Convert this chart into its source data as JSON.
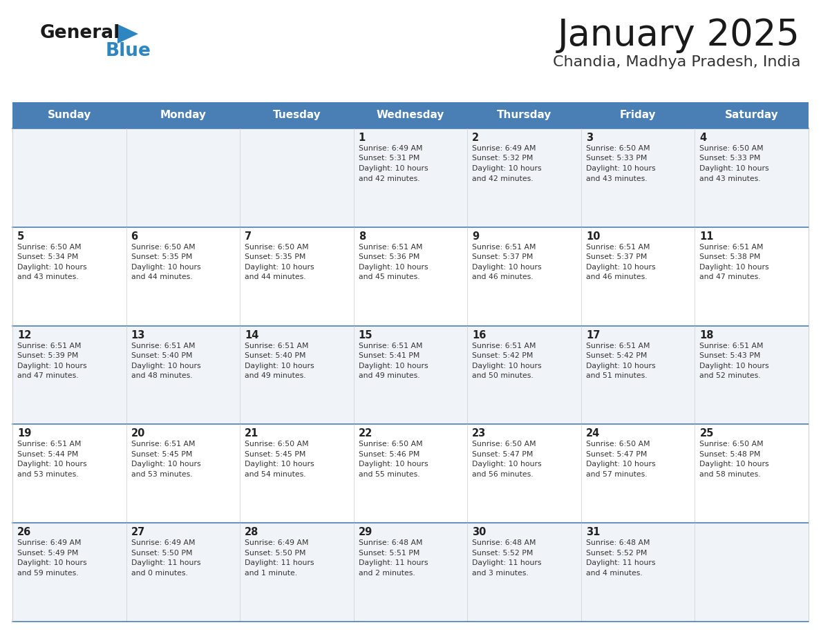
{
  "title": "January 2025",
  "subtitle": "Chandia, Madhya Pradesh, India",
  "days_of_week": [
    "Sunday",
    "Monday",
    "Tuesday",
    "Wednesday",
    "Thursday",
    "Friday",
    "Saturday"
  ],
  "header_bg": "#4A7FB5",
  "header_text_color": "#FFFFFF",
  "cell_bg_light": "#F0F4F8",
  "cell_bg_white": "#FFFFFF",
  "cell_text_color": "#333333",
  "day_num_color": "#222222",
  "grid_line_color": "#4A7FB5",
  "cell_border_color": "#CCCCCC",
  "title_color": "#1a1a1a",
  "subtitle_color": "#333333",
  "logo_general_color": "#1a1a1a",
  "logo_blue_color": "#2E86C1",
  "logo_triangle_color": "#2E86C1",
  "week_rows": [
    {
      "days": [
        {
          "day": null,
          "sunrise": null,
          "sunset": null,
          "daylight": null
        },
        {
          "day": null,
          "sunrise": null,
          "sunset": null,
          "daylight": null
        },
        {
          "day": null,
          "sunrise": null,
          "sunset": null,
          "daylight": null
        },
        {
          "day": 1,
          "sunrise": "6:49 AM",
          "sunset": "5:31 PM",
          "daylight": "10 hours\nand 42 minutes."
        },
        {
          "day": 2,
          "sunrise": "6:49 AM",
          "sunset": "5:32 PM",
          "daylight": "10 hours\nand 42 minutes."
        },
        {
          "day": 3,
          "sunrise": "6:50 AM",
          "sunset": "5:33 PM",
          "daylight": "10 hours\nand 43 minutes."
        },
        {
          "day": 4,
          "sunrise": "6:50 AM",
          "sunset": "5:33 PM",
          "daylight": "10 hours\nand 43 minutes."
        }
      ]
    },
    {
      "days": [
        {
          "day": 5,
          "sunrise": "6:50 AM",
          "sunset": "5:34 PM",
          "daylight": "10 hours\nand 43 minutes."
        },
        {
          "day": 6,
          "sunrise": "6:50 AM",
          "sunset": "5:35 PM",
          "daylight": "10 hours\nand 44 minutes."
        },
        {
          "day": 7,
          "sunrise": "6:50 AM",
          "sunset": "5:35 PM",
          "daylight": "10 hours\nand 44 minutes."
        },
        {
          "day": 8,
          "sunrise": "6:51 AM",
          "sunset": "5:36 PM",
          "daylight": "10 hours\nand 45 minutes."
        },
        {
          "day": 9,
          "sunrise": "6:51 AM",
          "sunset": "5:37 PM",
          "daylight": "10 hours\nand 46 minutes."
        },
        {
          "day": 10,
          "sunrise": "6:51 AM",
          "sunset": "5:37 PM",
          "daylight": "10 hours\nand 46 minutes."
        },
        {
          "day": 11,
          "sunrise": "6:51 AM",
          "sunset": "5:38 PM",
          "daylight": "10 hours\nand 47 minutes."
        }
      ]
    },
    {
      "days": [
        {
          "day": 12,
          "sunrise": "6:51 AM",
          "sunset": "5:39 PM",
          "daylight": "10 hours\nand 47 minutes."
        },
        {
          "day": 13,
          "sunrise": "6:51 AM",
          "sunset": "5:40 PM",
          "daylight": "10 hours\nand 48 minutes."
        },
        {
          "day": 14,
          "sunrise": "6:51 AM",
          "sunset": "5:40 PM",
          "daylight": "10 hours\nand 49 minutes."
        },
        {
          "day": 15,
          "sunrise": "6:51 AM",
          "sunset": "5:41 PM",
          "daylight": "10 hours\nand 49 minutes."
        },
        {
          "day": 16,
          "sunrise": "6:51 AM",
          "sunset": "5:42 PM",
          "daylight": "10 hours\nand 50 minutes."
        },
        {
          "day": 17,
          "sunrise": "6:51 AM",
          "sunset": "5:42 PM",
          "daylight": "10 hours\nand 51 minutes."
        },
        {
          "day": 18,
          "sunrise": "6:51 AM",
          "sunset": "5:43 PM",
          "daylight": "10 hours\nand 52 minutes."
        }
      ]
    },
    {
      "days": [
        {
          "day": 19,
          "sunrise": "6:51 AM",
          "sunset": "5:44 PM",
          "daylight": "10 hours\nand 53 minutes."
        },
        {
          "day": 20,
          "sunrise": "6:51 AM",
          "sunset": "5:45 PM",
          "daylight": "10 hours\nand 53 minutes."
        },
        {
          "day": 21,
          "sunrise": "6:50 AM",
          "sunset": "5:45 PM",
          "daylight": "10 hours\nand 54 minutes."
        },
        {
          "day": 22,
          "sunrise": "6:50 AM",
          "sunset": "5:46 PM",
          "daylight": "10 hours\nand 55 minutes."
        },
        {
          "day": 23,
          "sunrise": "6:50 AM",
          "sunset": "5:47 PM",
          "daylight": "10 hours\nand 56 minutes."
        },
        {
          "day": 24,
          "sunrise": "6:50 AM",
          "sunset": "5:47 PM",
          "daylight": "10 hours\nand 57 minutes."
        },
        {
          "day": 25,
          "sunrise": "6:50 AM",
          "sunset": "5:48 PM",
          "daylight": "10 hours\nand 58 minutes."
        }
      ]
    },
    {
      "days": [
        {
          "day": 26,
          "sunrise": "6:49 AM",
          "sunset": "5:49 PM",
          "daylight": "10 hours\nand 59 minutes."
        },
        {
          "day": 27,
          "sunrise": "6:49 AM",
          "sunset": "5:50 PM",
          "daylight": "11 hours\nand 0 minutes."
        },
        {
          "day": 28,
          "sunrise": "6:49 AM",
          "sunset": "5:50 PM",
          "daylight": "11 hours\nand 1 minute."
        },
        {
          "day": 29,
          "sunrise": "6:48 AM",
          "sunset": "5:51 PM",
          "daylight": "11 hours\nand 2 minutes."
        },
        {
          "day": 30,
          "sunrise": "6:48 AM",
          "sunset": "5:52 PM",
          "daylight": "11 hours\nand 3 minutes."
        },
        {
          "day": 31,
          "sunrise": "6:48 AM",
          "sunset": "5:52 PM",
          "daylight": "11 hours\nand 4 minutes."
        },
        {
          "day": null,
          "sunrise": null,
          "sunset": null,
          "daylight": null
        }
      ]
    }
  ]
}
